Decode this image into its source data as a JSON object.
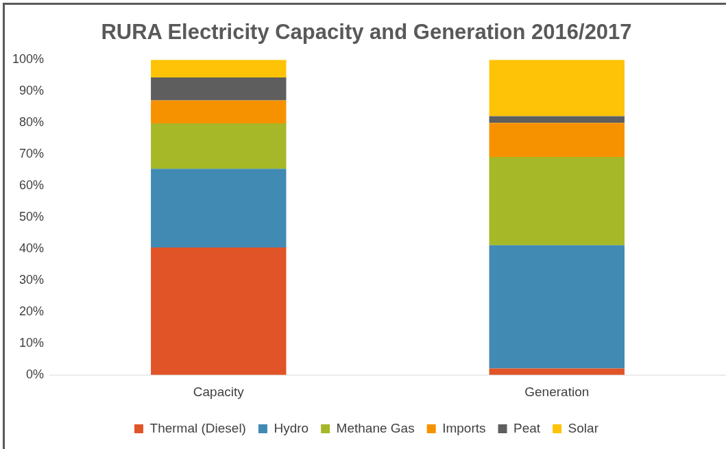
{
  "chart_data": {
    "type": "bar",
    "title": "RURA Electricity Capacity and Generation 2016/2017",
    "categories": [
      "Capacity",
      "Generation"
    ],
    "stacked": true,
    "legend": "bottom",
    "grid": false,
    "ylim": [
      0,
      100
    ],
    "yticks": [
      {
        "value": 0,
        "label": "0%"
      },
      {
        "value": 10,
        "label": "10%"
      },
      {
        "value": 20,
        "label": "20%"
      },
      {
        "value": 30,
        "label": "30%"
      },
      {
        "value": 40,
        "label": "40%"
      },
      {
        "value": 50,
        "label": "50%"
      },
      {
        "value": 60,
        "label": "60%"
      },
      {
        "value": 70,
        "label": "70%"
      },
      {
        "value": 80,
        "label": "80%"
      },
      {
        "value": 90,
        "label": "90%"
      },
      {
        "value": 100,
        "label": "100%"
      }
    ],
    "series": [
      {
        "name": "Thermal (Diesel)",
        "color": "#e05427",
        "values": [
          40.5,
          2.1
        ]
      },
      {
        "name": "Hydro",
        "color": "#418ab3",
        "values": [
          24.9,
          39.1
        ]
      },
      {
        "name": "Methane Gas",
        "color": "#a6b727",
        "values": [
          14.4,
          28
        ]
      },
      {
        "name": "Imports",
        "color": "#f69200",
        "values": [
          7.3,
          10.8
        ]
      },
      {
        "name": "Peat",
        "color": "#5e5e5e",
        "values": [
          7.3,
          2.1
        ]
      },
      {
        "name": "Solar",
        "color": "#fec306",
        "values": [
          5.6,
          17.9
        ]
      }
    ]
  }
}
